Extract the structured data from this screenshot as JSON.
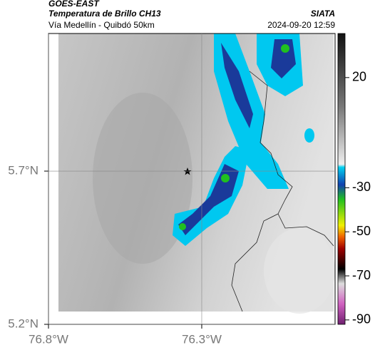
{
  "header": {
    "source": "GOES-EAST",
    "product": "Temperatura de Brillo CH13",
    "region": "Vía Medellín - Quibdó 50km",
    "agency": "SIATA",
    "datetime": "2024-09-20 12:59"
  },
  "map": {
    "xlim": [
      -76.8,
      -75.865
    ],
    "ylim": [
      5.2,
      6.149
    ],
    "xticks": [
      {
        "value": -76.8,
        "label": "76.8°W"
      },
      {
        "value": -76.3,
        "label": "76.3°W"
      }
    ],
    "yticks": [
      {
        "value": 5.2,
        "label": "5.2°N"
      },
      {
        "value": 5.7,
        "label": "5.7°N"
      }
    ],
    "grid": true
  },
  "colorbar": {
    "lim": [
      -92,
      40
    ],
    "ticks": [
      20,
      -30,
      -50,
      -70,
      -90
    ]
  }
}
